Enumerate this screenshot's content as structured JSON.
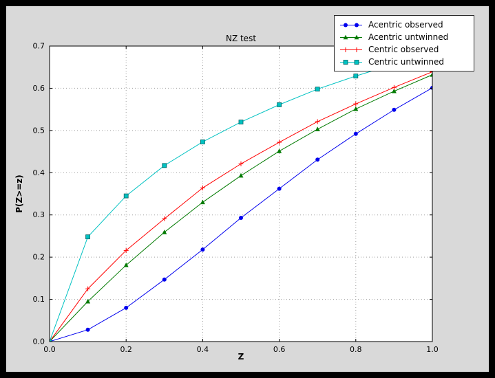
{
  "chart_data": {
    "type": "line",
    "title": "NZ test",
    "xlabel": "Z",
    "ylabel": "P(Z>=z)",
    "xlim": [
      0.0,
      1.0
    ],
    "ylim": [
      0.0,
      0.7
    ],
    "grid": true,
    "legend_position": "upper right",
    "x_ticks": [
      0.0,
      0.2,
      0.4,
      0.6,
      0.8,
      1.0
    ],
    "x_tick_labels": [
      "0.0",
      "0.2",
      "0.4",
      "0.6",
      "0.8",
      "1.0"
    ],
    "y_ticks": [
      0.0,
      0.1,
      0.2,
      0.3,
      0.4,
      0.5,
      0.6,
      0.7
    ],
    "y_tick_labels": [
      "0.0",
      "0.1",
      "0.2",
      "0.3",
      "0.4",
      "0.5",
      "0.6",
      "0.7"
    ],
    "x": [
      0.0,
      0.1,
      0.2,
      0.3,
      0.4,
      0.5,
      0.6,
      0.7,
      0.8,
      0.9,
      1.0
    ],
    "series": [
      {
        "name": "Acentric observed",
        "color": "#0000ee",
        "marker": "circle",
        "values": [
          0.0,
          0.028,
          0.08,
          0.147,
          0.218,
          0.293,
          0.362,
          0.431,
          0.492,
          0.549,
          0.601
        ]
      },
      {
        "name": "Acentric untwinned",
        "color": "#007a00",
        "marker": "triangle",
        "values": [
          0.0,
          0.095,
          0.181,
          0.259,
          0.33,
          0.393,
          0.451,
          0.503,
          0.551,
          0.593,
          0.632
        ]
      },
      {
        "name": "Centric observed",
        "color": "#ff0000",
        "marker": "plus",
        "values": [
          0.0,
          0.125,
          0.216,
          0.291,
          0.364,
          0.421,
          0.472,
          0.521,
          0.563,
          0.602,
          0.639
        ]
      },
      {
        "name": "Centric untwinned",
        "color": "#00c2c2",
        "marker": "square",
        "values": [
          0.0,
          0.248,
          0.345,
          0.417,
          0.473,
          0.52,
          0.561,
          0.598,
          0.629,
          0.657,
          0.683
        ]
      }
    ],
    "colors": {
      "outer_background": "#000000",
      "figure_background": "#d9d9d9",
      "plot_background": "#ffffff"
    }
  }
}
